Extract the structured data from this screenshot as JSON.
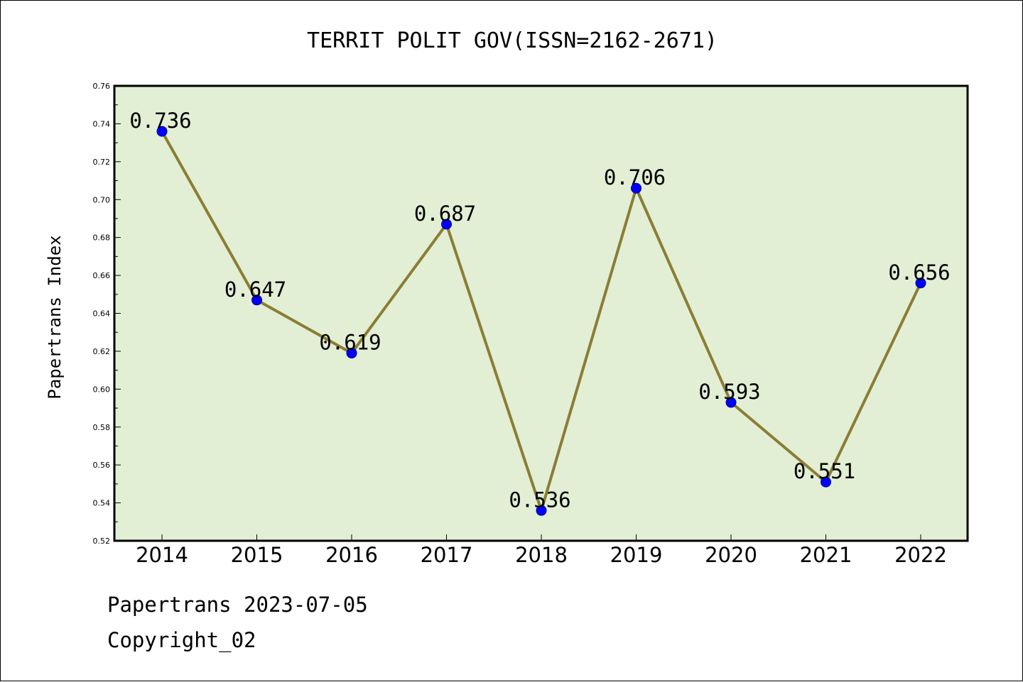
{
  "chart_data": {
    "type": "line",
    "title": "TERRIT POLIT GOV(ISSN=2162-2671)",
    "xlabel": "",
    "ylabel": "Papertrans Index",
    "categories": [
      "2014",
      "2015",
      "2016",
      "2017",
      "2018",
      "2019",
      "2020",
      "2021",
      "2022"
    ],
    "series": [
      {
        "values": [
          0.736,
          0.647,
          0.619,
          0.687,
          0.536,
          0.706,
          0.593,
          0.551,
          0.656
        ]
      }
    ],
    "data_labels": [
      "0.736",
      "0.647",
      "0.619",
      "0.687",
      "0.536",
      "0.706",
      "0.593",
      "0.551",
      "0.656"
    ],
    "ylim": [
      0.52,
      0.76
    ],
    "yticks": [
      "0.52",
      "0.54",
      "0.56",
      "0.58",
      "0.60",
      "0.62",
      "0.64",
      "0.66",
      "0.68",
      "0.70",
      "0.72",
      "0.74",
      "0.76"
    ],
    "grid": false,
    "legend": "none",
    "colors": {
      "line": "#8b7d35",
      "marker": "#0000ff",
      "plot_background": "#e2efd5",
      "axes": "#000000"
    }
  },
  "footer": {
    "line1": "Papertrans 2023-07-05",
    "line2": "Copyright_02"
  }
}
